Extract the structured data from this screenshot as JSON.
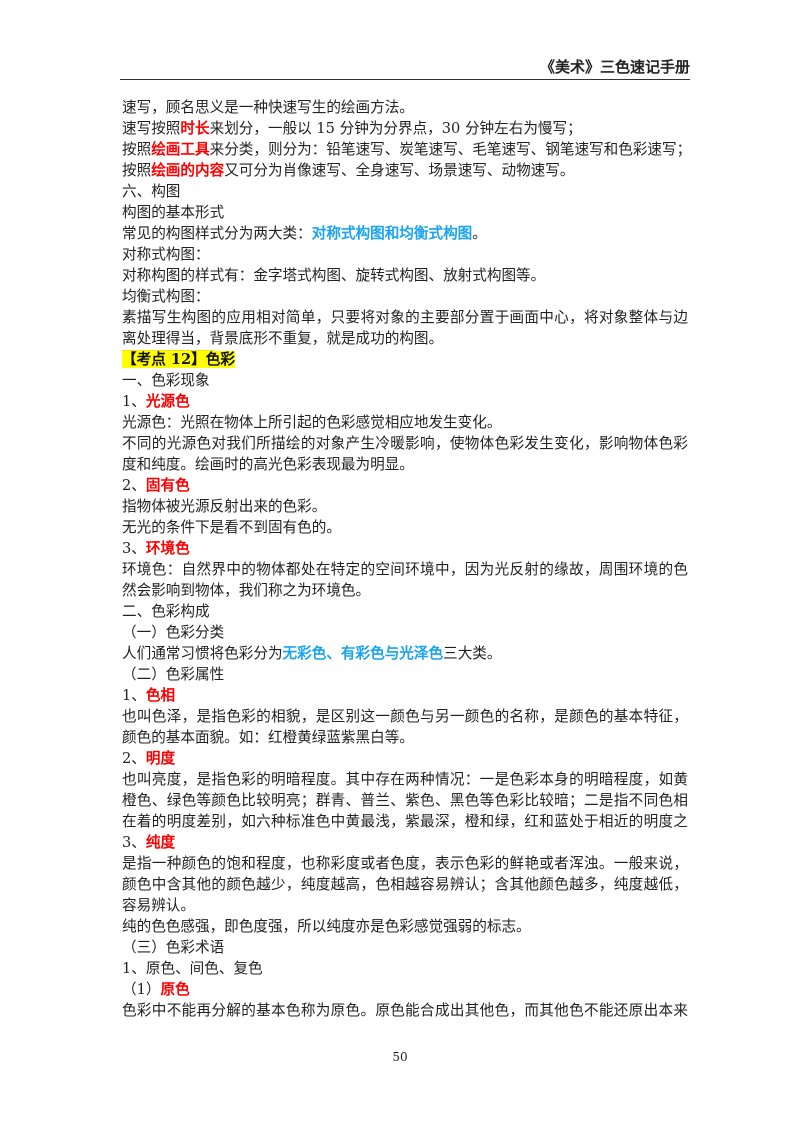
{
  "header": {
    "title": "《美术》三色速记手册"
  },
  "colors": {
    "red": "#ff0000",
    "blue": "#1aa3f0",
    "highlight": "#ffff00"
  },
  "lines": [
    {
      "segs": [
        {
          "t": "速写，顾名思义是一种快速写生的绘画方法。"
        }
      ]
    },
    {
      "segs": [
        {
          "t": "速写按照"
        },
        {
          "t": "时长",
          "c": "red"
        },
        {
          "t": "来划分，一般以 15 分钟为分界点，30 分钟左右为慢写；"
        }
      ]
    },
    {
      "segs": [
        {
          "t": "按照"
        },
        {
          "t": "绘画工具",
          "c": "red"
        },
        {
          "t": "来分类，则分为：铅笔速写、炭笔速写、毛笔速写、钢笔速写和色彩速写；"
        }
      ]
    },
    {
      "segs": [
        {
          "t": "按照"
        },
        {
          "t": "绘画的内容",
          "c": "red"
        },
        {
          "t": "又可分为肖像速写、全身速写、场景速写、动物速写。"
        }
      ]
    },
    {
      "segs": [
        {
          "t": "六、构图"
        }
      ]
    },
    {
      "segs": [
        {
          "t": "构图的基本形式"
        }
      ]
    },
    {
      "segs": [
        {
          "t": "常见的构图样式分为两大类："
        },
        {
          "t": "对称式构图和均衡式构图",
          "c": "blue"
        },
        {
          "t": "。"
        }
      ]
    },
    {
      "segs": [
        {
          "t": "对称式构图："
        }
      ]
    },
    {
      "segs": [
        {
          "t": "对称构图的样式有：金字塔式构图、旋转式构图、放射式构图等。"
        }
      ]
    },
    {
      "segs": [
        {
          "t": "均衡式构图："
        }
      ]
    },
    {
      "full": true,
      "segs": [
        {
          "t": "素描写生构图的应用相对简单，只要将对象的主要部分置于画面中心，将对象整体与边框距"
        }
      ]
    },
    {
      "segs": [
        {
          "t": "离处理得当，背景底形不重复，就是成功的构图。"
        }
      ]
    },
    {
      "segs": [
        {
          "t": "【考点 12】色彩",
          "c": "hl"
        }
      ]
    },
    {
      "segs": [
        {
          "t": "一、色彩现象"
        }
      ]
    },
    {
      "segs": [
        {
          "t": "1、"
        },
        {
          "t": "光源色",
          "c": "red"
        }
      ]
    },
    {
      "segs": [
        {
          "t": "光源色：光照在物体上所引起的色彩感觉相应地发生变化。"
        }
      ]
    },
    {
      "full": true,
      "segs": [
        {
          "t": "不同的光源色对我们所描绘的对象产生冷暖影响，使物体色彩发生变化，影响物体色彩的明"
        }
      ]
    },
    {
      "segs": [
        {
          "t": "度和纯度。绘画时的高光色彩表现最为明显。"
        }
      ]
    },
    {
      "segs": [
        {
          "t": "2、"
        },
        {
          "t": "固有色",
          "c": "red"
        }
      ]
    },
    {
      "segs": [
        {
          "t": "指物体被光源反射出来的色彩。"
        }
      ]
    },
    {
      "segs": [
        {
          "t": "无光的条件下是看不到固有色的。"
        }
      ]
    },
    {
      "segs": [
        {
          "t": "3、"
        },
        {
          "t": "环境色",
          "c": "red"
        }
      ]
    },
    {
      "full": true,
      "segs": [
        {
          "t": "环境色：自然界中的物体都处在特定的空间环境中，因为光反射的缘故，周围环境的色彩必"
        }
      ]
    },
    {
      "segs": [
        {
          "t": "然会影响到物体，我们称之为环境色。"
        }
      ]
    },
    {
      "segs": [
        {
          "t": "二、色彩构成"
        }
      ]
    },
    {
      "segs": [
        {
          "t": "（一）色彩分类"
        }
      ]
    },
    {
      "segs": [
        {
          "t": "人们通常习惯将色彩分为"
        },
        {
          "t": "无彩色、有彩色与光泽色",
          "c": "blue"
        },
        {
          "t": "三大类。"
        }
      ]
    },
    {
      "segs": [
        {
          "t": "（二）色彩属性"
        }
      ]
    },
    {
      "segs": [
        {
          "t": "1、"
        },
        {
          "t": "色相",
          "c": "red"
        }
      ]
    },
    {
      "full": true,
      "segs": [
        {
          "t": "也叫色泽，是指色彩的相貌，是区别这一颜色与另一颜色的名称，是颜色的基本特征，反映"
        }
      ]
    },
    {
      "segs": [
        {
          "t": "颜色的基本面貌。如：红橙黄绿蓝紫黑白等。"
        }
      ]
    },
    {
      "segs": [
        {
          "t": "2、"
        },
        {
          "t": "明度",
          "c": "red"
        }
      ]
    },
    {
      "full": true,
      "segs": [
        {
          "t": "也叫亮度，是指色彩的明暗程度。其中存在两种情况：一是色彩本身的明暗程度，如黄色、"
        }
      ]
    },
    {
      "full": true,
      "segs": [
        {
          "t": "橙色、绿色等颜色比较明亮；群青、普兰、紫色、黑色等色彩比较暗；二是指不同色相间存"
        }
      ]
    },
    {
      "full": true,
      "segs": [
        {
          "t": "在着的明度差别，如六种标准色中黄最浅，紫最深，橙和绿，红和蓝处于相近的明度之间。"
        }
      ]
    },
    {
      "segs": [
        {
          "t": "3、"
        },
        {
          "t": "纯度",
          "c": "red"
        }
      ]
    },
    {
      "full": true,
      "segs": [
        {
          "t": "是指一种颜色的饱和程度，也称彩度或者色度，表示色彩的鲜艳或者浑浊。一般来说，一种"
        }
      ]
    },
    {
      "full": true,
      "segs": [
        {
          "t": "颜色中含其他的颜色越少，纯度越高，色相越容易辨认；含其他颜色越多，纯度越低，越不"
        }
      ]
    },
    {
      "segs": [
        {
          "t": "容易辨认。"
        }
      ]
    },
    {
      "segs": [
        {
          "t": "纯的色色感强，即色度强，所以纯度亦是色彩感觉强弱的标志。"
        }
      ]
    },
    {
      "segs": [
        {
          "t": "（三）色彩术语"
        }
      ]
    },
    {
      "segs": [
        {
          "t": "1、原色、间色、复色"
        }
      ]
    },
    {
      "segs": [
        {
          "t": "（1）"
        },
        {
          "t": "原色",
          "c": "red"
        }
      ]
    },
    {
      "full": true,
      "segs": [
        {
          "t": "色彩中不能再分解的基本色称为原色。原色能合成出其他色，而其他色不能还原出本来的原"
        }
      ]
    }
  ],
  "footer": {
    "page_number": "50"
  }
}
